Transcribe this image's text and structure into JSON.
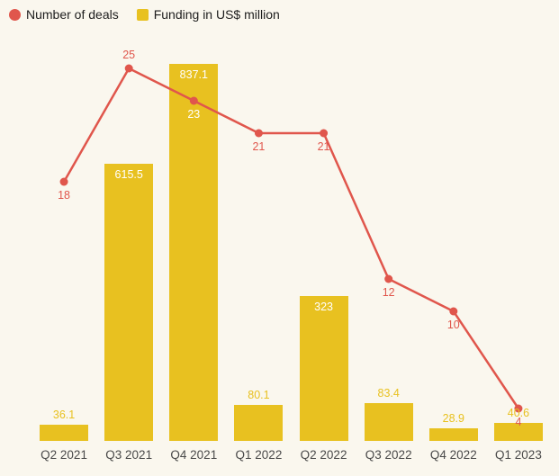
{
  "legend": [
    {
      "label": "Number of deals",
      "color": "#e0564c",
      "shape": "circle"
    },
    {
      "label": "Funding in US$ million",
      "color": "#e8c120",
      "shape": "square"
    }
  ],
  "chart_data": {
    "type": "combo",
    "background": "#faf7ee",
    "categories": [
      "Q2 2021",
      "Q3 2021",
      "Q4 2021",
      "Q1 2022",
      "Q2 2022",
      "Q3 2022",
      "Q4 2022",
      "Q1 2023"
    ],
    "series": [
      {
        "name": "Number of deals",
        "type": "line",
        "color": "#e0564c",
        "values": [
          18,
          25,
          23,
          21,
          21,
          12,
          10,
          4
        ],
        "labels": [
          "18",
          "25",
          "23",
          "21",
          "21",
          "12",
          "10",
          "4"
        ],
        "label_positions": [
          "below",
          "above",
          "below",
          "below",
          "below",
          "below",
          "below",
          "below"
        ],
        "label_colors": [
          "#e0564c",
          "#e0564c",
          "#ffffff",
          "#e0564c",
          "#e0564c",
          "#e0564c",
          "#e0564c",
          "#e0564c"
        ],
        "ylim": [
          2,
          27
        ]
      },
      {
        "name": "Funding in US$ million",
        "type": "bar",
        "color": "#e8c120",
        "values": [
          36.1,
          615.5,
          837.1,
          80.1,
          323,
          83.4,
          28.9,
          40.6
        ],
        "labels": [
          "36.1",
          "615.5",
          "837.1",
          "80.1",
          "323",
          "83.4",
          "28.9",
          "40.6"
        ],
        "label_placement": [
          "above",
          "inside",
          "inside",
          "above",
          "inside",
          "above",
          "above",
          "above"
        ],
        "ylim": [
          0,
          900
        ]
      }
    ],
    "legend_position": "top-left",
    "grid": false,
    "xlabel": "",
    "ylabel": ""
  }
}
